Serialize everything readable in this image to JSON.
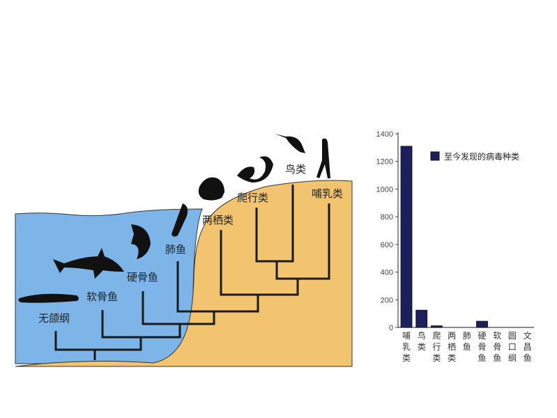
{
  "diagram": {
    "labels": [
      "无颌纲",
      "软骨鱼",
      "硬骨鱼",
      "肺鱼",
      "两栖类",
      "爬行类",
      "鸟类",
      "哺乳类"
    ],
    "colors": {
      "water": "#7db5e8",
      "land": "#f3c46f",
      "lines": "#1a1a1a"
    }
  },
  "chart_data": {
    "type": "bar",
    "categories": [
      "哺乳类",
      "鸟类",
      "爬行类",
      "两栖类",
      "肺鱼",
      "硬骨鱼",
      "软骨鱼",
      "圆口纲",
      "文昌鱼"
    ],
    "series": [
      {
        "name": "至今发现的病毒种类",
        "values": [
          1310,
          125,
          12,
          0,
          0,
          45,
          0,
          0,
          0
        ]
      }
    ],
    "ylim": [
      0,
      1400
    ],
    "yticks": [
      0,
      200,
      400,
      600,
      800,
      1000,
      1200,
      1400
    ],
    "legend": "top-right",
    "grid": false,
    "bar_color": "#1b1f5c"
  }
}
